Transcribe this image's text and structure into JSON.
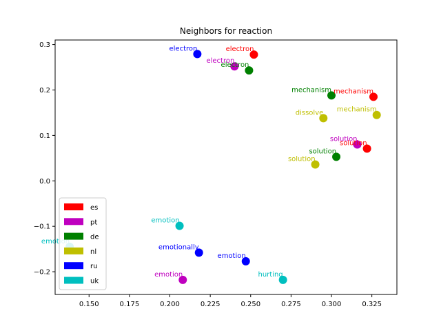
{
  "chart_data": {
    "type": "scatter",
    "title": "Neighbors for reaction",
    "xlabel": "",
    "ylabel": "",
    "xlim": [
      0.129,
      0.3405
    ],
    "ylim": [
      -0.25,
      0.31
    ],
    "xticks": [
      0.15,
      0.175,
      0.2,
      0.225,
      0.25,
      0.275,
      0.3,
      0.325
    ],
    "yticks": [
      -0.2,
      -0.1,
      0.0,
      0.1,
      0.2,
      0.3
    ],
    "xtick_labels": [
      "0.150",
      "0.175",
      "0.200",
      "0.225",
      "0.250",
      "0.275",
      "0.300",
      "0.325"
    ],
    "ytick_labels": [
      "−0.2",
      "−0.1",
      "0.0",
      "0.1",
      "0.2",
      "0.3"
    ],
    "grid": false,
    "legend_position": "lower-left",
    "series": [
      {
        "name": "es",
        "color": "#ff0000",
        "points": [
          {
            "label": "electron",
            "x": 0.252,
            "y": 0.278
          },
          {
            "label": "mechanism",
            "x": 0.326,
            "y": 0.185
          },
          {
            "label": "solution",
            "x": 0.322,
            "y": 0.071
          }
        ]
      },
      {
        "name": "pt",
        "color": "#bf00bf",
        "points": [
          {
            "label": "electron",
            "x": 0.24,
            "y": 0.252
          },
          {
            "label": "solution",
            "x": 0.316,
            "y": 0.08
          },
          {
            "label": "emotion",
            "x": 0.208,
            "y": -0.218
          }
        ]
      },
      {
        "name": "de",
        "color": "#008000",
        "points": [
          {
            "label": "electron",
            "x": 0.249,
            "y": 0.243
          },
          {
            "label": "mechanism",
            "x": 0.3,
            "y": 0.188
          },
          {
            "label": "solution",
            "x": 0.303,
            "y": 0.053
          }
        ]
      },
      {
        "name": "nl",
        "color": "#bfbf00",
        "points": [
          {
            "label": "dissolve",
            "x": 0.295,
            "y": 0.138
          },
          {
            "label": "mechanism",
            "x": 0.328,
            "y": 0.145
          },
          {
            "label": "solution",
            "x": 0.29,
            "y": 0.036
          }
        ]
      },
      {
        "name": "ru",
        "color": "#0000ff",
        "points": [
          {
            "label": "electron",
            "x": 0.217,
            "y": 0.279
          },
          {
            "label": "emotionally",
            "x": 0.218,
            "y": -0.158
          },
          {
            "label": "emotion",
            "x": 0.247,
            "y": -0.177
          }
        ]
      },
      {
        "name": "uk",
        "color": "#00bfbf",
        "points": [
          {
            "label": "emotion",
            "x": 0.206,
            "y": -0.099
          },
          {
            "label": "emotion",
            "x": 0.138,
            "y": -0.145
          },
          {
            "label": "hurting",
            "x": 0.27,
            "y": -0.218
          }
        ]
      }
    ]
  }
}
